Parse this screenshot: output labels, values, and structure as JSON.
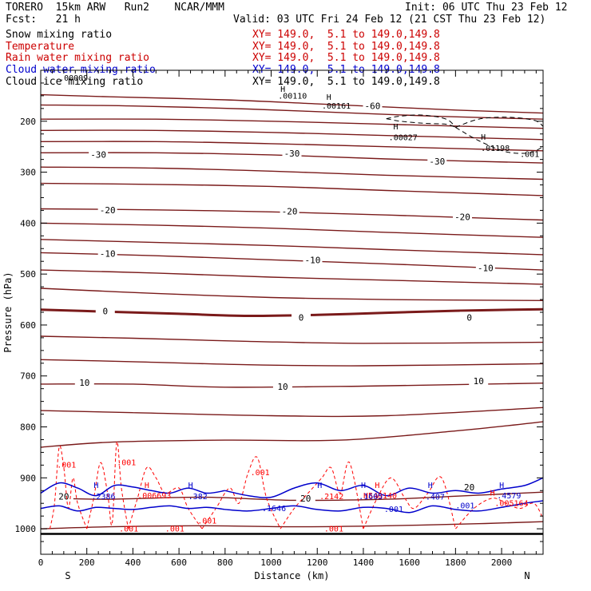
{
  "header": {
    "line1_left": "TORERO  15km ARW   Run2    NCAR/MMM",
    "line1_right": "Init: 06 UTC Thu 23 Feb 12",
    "line2_left": "Fcst:   21 h",
    "line2_right": "Valid: 03 UTC Fri 24 Feb 12 (21 CST Thu 23 Feb 12)"
  },
  "legend": [
    {
      "label": "Snow mixing ratio",
      "xy": "XY= 149.0,  5.1 to 149.0,149.8",
      "label_color": "#000000",
      "xy_color": "#cc0000"
    },
    {
      "label": "Temperature",
      "xy": "XY= 149.0,  5.1 to 149.0,149.8",
      "label_color": "#cc0000",
      "xy_color": "#cc0000"
    },
    {
      "label": "Rain water mixing ratio",
      "xy": "XY= 149.0,  5.1 to 149.0,149.8",
      "label_color": "#cc0000",
      "xy_color": "#cc0000"
    },
    {
      "label": "Cloud water mixing ratio",
      "xy": "XY= 149.0,  5.1 to 149.0,149.8",
      "label_color": "#0000cc",
      "xy_color": "#0000cc"
    },
    {
      "label": "Cloud ice mixing ratio",
      "xy": "XY= 149.0,  5.1 to 149.0,149.8",
      "label_color": "#000000",
      "xy_color": "#000000"
    }
  ],
  "colors": {
    "temperature": "#7a1a1a",
    "rain": "#ff0000",
    "cloud_water": "#0000cc",
    "snow": "#000000",
    "frame": "#000000"
  },
  "chart_data": {
    "type": "line",
    "xlabel": "Distance (km)",
    "ylabel": "Pressure (hPa)",
    "xlim": [
      0,
      2180
    ],
    "ylim": [
      1050,
      100
    ],
    "x_ticks": [
      0,
      200,
      400,
      600,
      800,
      1000,
      1200,
      1400,
      1600,
      1800,
      2000
    ],
    "y_ticks": [
      200,
      300,
      400,
      500,
      600,
      700,
      800,
      900,
      1000
    ],
    "x_end_labels": {
      "left": "S",
      "right": "N"
    },
    "surface_pressure": 1010,
    "temperature_isotherms": [
      {
        "label": "-60",
        "x": [
          0,
          300,
          800,
          1200,
          1500,
          1800,
          2180
        ],
        "p": [
          148,
          152,
          158,
          166,
          172,
          178,
          184
        ],
        "label_at": [
          1440,
          170
        ]
      },
      {
        "x": [
          0,
          400,
          900,
          1300,
          1700,
          2180
        ],
        "p": [
          168,
          170,
          176,
          183,
          190,
          196
        ]
      },
      {
        "x": [
          0,
          500,
          1000,
          1500,
          2180
        ],
        "p": [
          196,
          196,
          200,
          206,
          214
        ]
      },
      {
        "x": [
          0,
          500,
          1000,
          1500,
          2180
        ],
        "p": [
          218,
          218,
          222,
          228,
          236
        ]
      },
      {
        "x": [
          0,
          500,
          1000,
          1500,
          2180
        ],
        "p": [
          240,
          240,
          244,
          250,
          258
        ]
      },
      {
        "label": "-30",
        "x": [
          0,
          500,
          1000,
          1500,
          2180
        ],
        "p": [
          262,
          262,
          266,
          274,
          282
        ],
        "label_values": [
          "-30",
          "-30",
          "-30"
        ],
        "label_at_multi": [
          [
            250,
            265
          ],
          [
            1090,
            263
          ],
          [
            1720,
            279
          ]
        ]
      },
      {
        "x": [
          0,
          500,
          1000,
          1500,
          2180
        ],
        "p": [
          290,
          292,
          298,
          306,
          314
        ]
      },
      {
        "x": [
          0,
          500,
          1000,
          1500,
          2180
        ],
        "p": [
          322,
          324,
          328,
          336,
          346
        ]
      },
      {
        "label": "-20",
        "x": [
          0,
          500,
          1000,
          1500,
          2180
        ],
        "p": [
          372,
          374,
          378,
          384,
          394
        ],
        "label_values": [
          "-20",
          "-20",
          "-20"
        ],
        "label_at_multi": [
          [
            290,
            374
          ],
          [
            1080,
            377
          ],
          [
            1830,
            388
          ]
        ]
      },
      {
        "x": [
          0,
          500,
          1000,
          1500,
          2180
        ],
        "p": [
          400,
          404,
          410,
          418,
          428
        ]
      },
      {
        "x": [
          0,
          500,
          1000,
          1500,
          2180
        ],
        "p": [
          432,
          438,
          444,
          452,
          462
        ]
      },
      {
        "label": "-10",
        "x": [
          0,
          500,
          1000,
          1500,
          2180
        ],
        "p": [
          458,
          464,
          472,
          480,
          492
        ],
        "label_values": [
          "-10",
          "-10",
          "-10"
        ],
        "label_at_multi": [
          [
            290,
            460
          ],
          [
            1180,
            472
          ],
          [
            1930,
            488
          ]
        ]
      },
      {
        "x": [
          0,
          500,
          1000,
          1500,
          2180
        ],
        "p": [
          492,
          498,
          506,
          512,
          520
        ]
      },
      {
        "x": [
          0,
          500,
          1000,
          1500,
          2180
        ],
        "p": [
          528,
          538,
          546,
          550,
          552
        ]
      },
      {
        "label": "0",
        "emph": true,
        "x": [
          0,
          300,
          600,
          900,
          1200,
          1500,
          1800,
          2180
        ],
        "p": [
          570,
          574,
          578,
          582,
          580,
          576,
          572,
          569
        ],
        "label_values": [
          "0",
          "0",
          "0"
        ],
        "label_at_multi": [
          [
            280,
            573
          ],
          [
            1130,
            585
          ],
          [
            1860,
            585
          ]
        ]
      },
      {
        "x": [
          0,
          400,
          900,
          1400,
          2180
        ],
        "p": [
          622,
          626,
          632,
          636,
          634
        ]
      },
      {
        "x": [
          0,
          400,
          900,
          1400,
          2180
        ],
        "p": [
          668,
          672,
          678,
          680,
          676
        ]
      },
      {
        "label": "10",
        "x": [
          0,
          400,
          800,
          1400,
          2180
        ],
        "p": [
          716,
          716,
          722,
          720,
          714
        ],
        "label_values": [
          "10",
          "10",
          "10"
        ],
        "label_at_multi": [
          [
            190,
            713
          ],
          [
            1050,
            721
          ],
          [
            1900,
            710
          ]
        ]
      },
      {
        "x": [
          0,
          400,
          1000,
          1500,
          2180
        ],
        "p": [
          768,
          772,
          778,
          778,
          762
        ]
      },
      {
        "x": [
          0,
          300,
          800,
          1300,
          1800,
          2180
        ],
        "p": [
          840,
          830,
          826,
          826,
          808,
          790
        ]
      },
      {
        "label": "20",
        "x": [
          60,
          300,
          700,
          1100,
          1500,
          1800,
          2180
        ],
        "p": [
          940,
          942,
          938,
          944,
          942,
          936,
          928
        ],
        "label_values": [
          "20",
          "20",
          "20"
        ],
        "label_at_multi": [
          [
            100,
            936
          ],
          [
            1150,
            940
          ],
          [
            1860,
            918
          ]
        ]
      },
      {
        "x": [
          0,
          300,
          700,
          1100,
          1500,
          1900,
          2180
        ],
        "p": [
          1000,
          996,
          994,
          996,
          994,
          990,
          986
        ]
      }
    ],
    "cloud_ice_contours": [
      {
        "x": [
          1500,
          1560,
          1660,
          1760,
          1800
        ],
        "p": [
          195,
          190,
          188,
          196,
          212
        ]
      },
      {
        "x": [
          1500,
          1560,
          1660,
          1760,
          1800
        ],
        "p": [
          195,
          200,
          204,
          206,
          212
        ]
      },
      {
        "x": [
          1800,
          1900,
          2020,
          2140,
          2180
        ],
        "p": [
          212,
          196,
          192,
          198,
          210
        ]
      },
      {
        "x": [
          1800,
          1900,
          2020,
          2120,
          2180
        ],
        "p": [
          212,
          238,
          260,
          262,
          250
        ]
      }
    ],
    "cloud_ice_labels": [
      {
        "text": ".00110",
        "x": 1030,
        "p": 156
      },
      {
        "text": ".00161",
        "x": 1220,
        "p": 175
      },
      {
        "text": ".00027",
        "x": 1510,
        "p": 237
      },
      {
        "text": ".01198",
        "x": 1910,
        "p": 258
      },
      {
        "text": ".001",
        "x": 2080,
        "p": 270
      },
      {
        "text": ".00009",
        "x": 80,
        "p": 120
      }
    ],
    "cloud_ice_highs": [
      {
        "text": "H",
        "x": 1040,
        "p": 142
      },
      {
        "text": "H",
        "x": 1240,
        "p": 158
      },
      {
        "text": "H",
        "x": 1530,
        "p": 216
      },
      {
        "text": "H",
        "x": 1910,
        "p": 236
      }
    ],
    "rain_contours": [
      {
        "x": [
          40,
          60,
          80,
          100,
          120,
          140,
          160,
          200
        ],
        "p": [
          1000,
          950,
          840,
          880,
          960,
          900,
          950,
          1000
        ]
      },
      {
        "x": [
          200,
          230,
          260,
          290,
          310,
          330,
          350,
          380
        ],
        "p": [
          1000,
          940,
          870,
          930,
          990,
          830,
          920,
          1000
        ]
      },
      {
        "x": [
          380,
          420,
          460,
          500,
          540,
          600,
          640,
          700
        ],
        "p": [
          1000,
          940,
          880,
          900,
          930,
          920,
          960,
          1000
        ]
      },
      {
        "x": [
          700,
          760,
          820,
          860,
          900,
          940,
          980,
          1040
        ],
        "p": [
          1000,
          960,
          920,
          950,
          890,
          860,
          940,
          1000
        ]
      },
      {
        "x": [
          1040,
          1100,
          1160,
          1220,
          1260,
          1300,
          1340,
          1400
        ],
        "p": [
          1000,
          960,
          930,
          900,
          880,
          930,
          870,
          1000
        ]
      },
      {
        "x": [
          1400,
          1460,
          1520,
          1580,
          1620,
          1680,
          1740,
          1800
        ],
        "p": [
          1000,
          940,
          900,
          940,
          960,
          930,
          900,
          1000
        ]
      },
      {
        "x": [
          1800,
          1880,
          1960,
          2020,
          2080,
          2140,
          2180
        ],
        "p": [
          1000,
          960,
          940,
          950,
          960,
          950,
          980
        ]
      }
    ],
    "rain_labels": [
      {
        "text": ".001",
        "x": 70,
        "p": 880
      },
      {
        "text": ".001",
        "x": 330,
        "p": 875
      },
      {
        "text": ".001",
        "x": 910,
        "p": 895
      },
      {
        "text": ".006693",
        "x": 420,
        "p": 940
      },
      {
        "text": ".001",
        "x": 340,
        "p": 1005
      },
      {
        "text": ".001",
        "x": 540,
        "p": 1005
      },
      {
        "text": ".001",
        "x": 680,
        "p": 990
      },
      {
        "text": ".001",
        "x": 1230,
        "p": 1005
      },
      {
        "text": "H549140",
        "x": 1400,
        "p": 940
      },
      {
        "text": ".005164",
        "x": 1970,
        "p": 955
      },
      {
        "text": ".2142",
        "x": 1210,
        "p": 942
      }
    ],
    "rain_highs": [
      {
        "text": "H",
        "x": 450,
        "p": 920
      },
      {
        "text": "H",
        "x": 1450,
        "p": 920
      },
      {
        "text": "H",
        "x": 1950,
        "p": 935
      }
    ],
    "cloud_water_contours": [
      {
        "x": [
          0,
          80,
          160,
          240,
          320,
          400,
          480,
          560,
          640,
          720,
          800
        ],
        "p": [
          930,
          910,
          920,
          935,
          915,
          918,
          925,
          930,
          920,
          930,
          925
        ]
      },
      {
        "x": [
          0,
          80,
          160,
          240,
          320,
          400,
          480,
          560,
          640,
          720,
          800
        ],
        "p": [
          960,
          955,
          965,
          958,
          960,
          962,
          958,
          955,
          960,
          958,
          962
        ]
      },
      {
        "x": [
          800,
          900,
          1000,
          1100,
          1200,
          1300,
          1400,
          1500,
          1600,
          1700,
          1800,
          1900,
          2000,
          2100,
          2180
        ],
        "p": [
          925,
          935,
          938,
          920,
          910,
          925,
          915,
          935,
          920,
          930,
          925,
          930,
          922,
          915,
          900
        ]
      },
      {
        "x": [
          800,
          900,
          1000,
          1100,
          1200,
          1300,
          1400,
          1500,
          1600,
          1700,
          1800,
          1900,
          2000,
          2100,
          2180
        ],
        "p": [
          962,
          965,
          960,
          955,
          962,
          965,
          958,
          960,
          968,
          955,
          962,
          965,
          958,
          950,
          945
        ]
      }
    ],
    "cloud_water_labels": [
      {
        "text": ".2386",
        "x": 220,
        "p": 942
      },
      {
        "text": ".382",
        "x": 640,
        "p": 942
      },
      {
        "text": ".1646",
        "x": 960,
        "p": 965
      },
      {
        "text": ".1605",
        "x": 1380,
        "p": 942
      },
      {
        "text": ".001",
        "x": 1490,
        "p": 967
      },
      {
        "text": ".407",
        "x": 1670,
        "p": 943
      },
      {
        "text": ".001",
        "x": 1800,
        "p": 960
      },
      {
        "text": ".4579",
        "x": 1980,
        "p": 940
      }
    ],
    "cloud_water_highs": [
      {
        "text": "H",
        "x": 230,
        "p": 920
      },
      {
        "text": "H",
        "x": 640,
        "p": 920
      },
      {
        "text": "H",
        "x": 1200,
        "p": 920
      },
      {
        "text": "H",
        "x": 1390,
        "p": 920
      },
      {
        "text": "H",
        "x": 1680,
        "p": 920
      },
      {
        "text": "H",
        "x": 1990,
        "p": 920
      }
    ]
  }
}
